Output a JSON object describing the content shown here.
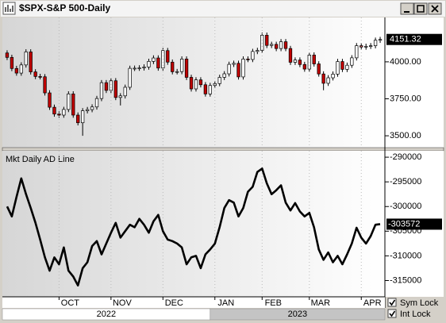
{
  "window": {
    "title": "$SPX-S&P 500-Daily"
  },
  "chart_data": [
    {
      "type": "candlestick",
      "xlim": [
        -1,
        80
      ],
      "ylim": [
        3420,
        4300
      ],
      "yticks": [
        {
          "value": 3500,
          "label": "3500.00"
        },
        {
          "value": 3750,
          "label": "3750.00"
        },
        {
          "value": 4000,
          "label": "4000.00"
        }
      ],
      "up_color": "#ffffff",
      "down_color": "#c00000",
      "open": [
        4060,
        4030,
        3955,
        3924,
        3979,
        4067,
        3932,
        3901,
        3899,
        3790,
        3693,
        3647,
        3640,
        3678,
        3783,
        3640,
        3588,
        3669,
        3677,
        3695,
        3752,
        3859,
        3807,
        3872,
        3759,
        3770,
        3828,
        3956,
        3957,
        3959,
        3965,
        4003,
        4026,
        3958,
        4076,
        3998,
        3933,
        3934,
        4019,
        3895,
        3817,
        3878,
        3845,
        3783,
        3840,
        3853,
        3895,
        3919,
        3983,
        3990,
        3898,
        4019,
        4016,
        4070,
        4077,
        4180,
        4111,
        4118,
        4090,
        4136,
        4090,
        3997,
        4012,
        3982,
        3951,
        4046,
        3986,
        3918,
        3855,
        3892,
        3917,
        4002,
        3949,
        3977,
        4027,
        4109,
        4100,
        4105,
        4109,
        4146
      ],
      "high": [
        4078,
        4048,
        3973,
        3997,
        4085,
        4085,
        3950,
        3919,
        3917,
        3808,
        3711,
        3665,
        3696,
        3801,
        3801,
        3658,
        3687,
        3695,
        3713,
        3770,
        3877,
        3877,
        3890,
        3890,
        3788,
        3846,
        3974,
        3975,
        3977,
        3983,
        4021,
        4044,
        4044,
        4094,
        4094,
        4016,
        3952,
        4037,
        4037,
        3913,
        3896,
        3896,
        3863,
        3858,
        3871,
        3913,
        3937,
        4001,
        4008,
        4008,
        4037,
        4037,
        4088,
        4095,
        4198,
        4198,
        4136,
        4136,
        4154,
        4154,
        4108,
        4030,
        4030,
        4000,
        4064,
        4064,
        4004,
        3936,
        3910,
        3935,
        4020,
        4020,
        3995,
        4045,
        4127,
        4127,
        4123,
        4127,
        4164,
        4169
      ],
      "low": [
        4012,
        3937,
        3906,
        3906,
        3961,
        3914,
        3883,
        3881,
        3772,
        3675,
        3629,
        3622,
        3622,
        3660,
        3622,
        3570,
        3500,
        3651,
        3659,
        3677,
        3734,
        3789,
        3789,
        3741,
        3705,
        3752,
        3810,
        3938,
        3939,
        3941,
        3947,
        3985,
        3940,
        3940,
        3980,
        3915,
        3915,
        3916,
        3877,
        3799,
        3799,
        3827,
        3765,
        3765,
        3822,
        3835,
        3877,
        3901,
        3965,
        3880,
        3880,
        3998,
        3998,
        4052,
        4059,
        4093,
        4093,
        4072,
        4072,
        4072,
        3979,
        3979,
        3964,
        3933,
        3933,
        3968,
        3900,
        3808,
        3837,
        3874,
        3899,
        3931,
        3931,
        3959,
        4009,
        4082,
        4082,
        4087,
        4091,
        4128
      ],
      "close": [
        4030,
        3955,
        3924,
        3979,
        4067,
        3932,
        3901,
        3899,
        3790,
        3693,
        3647,
        3640,
        3678,
        3783,
        3640,
        3588,
        3669,
        3677,
        3695,
        3752,
        3859,
        3807,
        3872,
        3759,
        3770,
        3828,
        3956,
        3957,
        3959,
        3965,
        4003,
        4026,
        3958,
        4076,
        3998,
        3933,
        3934,
        4019,
        3895,
        3817,
        3878,
        3845,
        3783,
        3840,
        3853,
        3895,
        3919,
        3983,
        3990,
        3898,
        4019,
        4016,
        4070,
        4077,
        4180,
        4111,
        4118,
        4090,
        4136,
        4090,
        3997,
        4012,
        3982,
        3951,
        4046,
        3986,
        3918,
        3855,
        3892,
        3917,
        4002,
        3949,
        3977,
        4027,
        4109,
        4100,
        4105,
        4109,
        4146,
        4151.32
      ]
    },
    {
      "type": "line",
      "title": "Mkt Daily AD Line",
      "color": "#000000",
      "xlim": [
        -1,
        80
      ],
      "ylim": [
        -318300,
        -288700
      ],
      "yticks": [
        -290000,
        -295000,
        -300000,
        -305000,
        -310000,
        -315000
      ],
      "xticks": [
        {
          "value": 11,
          "label": "OCT"
        },
        {
          "value": 22,
          "label": "NOV"
        },
        {
          "value": 33,
          "label": "DEC"
        },
        {
          "value": 44,
          "label": "JAN"
        },
        {
          "value": 54,
          "label": "FEB"
        },
        {
          "value": 64,
          "label": "MAR"
        },
        {
          "value": 75,
          "label": "APR"
        }
      ],
      "year_ticks": [
        {
          "value": -1,
          "label": "2022"
        },
        {
          "value": 43,
          "label": "2023"
        }
      ],
      "values": [
        -300000,
        -302000,
        -298000,
        -294300,
        -297500,
        -300300,
        -303300,
        -306700,
        -310300,
        -313000,
        -310300,
        -311700,
        -308300,
        -313000,
        -314200,
        -316000,
        -312500,
        -311300,
        -308000,
        -307000,
        -309700,
        -307500,
        -305300,
        -303300,
        -306300,
        -305000,
        -303700,
        -304200,
        -302500,
        -303700,
        -305300,
        -303000,
        -301700,
        -305000,
        -306700,
        -307000,
        -307500,
        -308300,
        -311700,
        -310300,
        -310000,
        -312500,
        -309700,
        -308700,
        -307500,
        -304200,
        -300300,
        -298700,
        -299200,
        -302000,
        -300300,
        -297000,
        -296000,
        -293000,
        -292300,
        -295300,
        -297500,
        -296700,
        -295700,
        -299200,
        -300800,
        -299300,
        -301000,
        -302000,
        -301300,
        -304200,
        -308700,
        -310800,
        -309300,
        -311300,
        -310000,
        -311700,
        -309700,
        -307500,
        -304300,
        -306300,
        -307500,
        -306000,
        -303700,
        -303572
      ]
    }
  ],
  "controls": [
    {
      "label": "Sym Lock",
      "checked": true
    },
    {
      "label": "Int Lock",
      "checked": true
    }
  ]
}
